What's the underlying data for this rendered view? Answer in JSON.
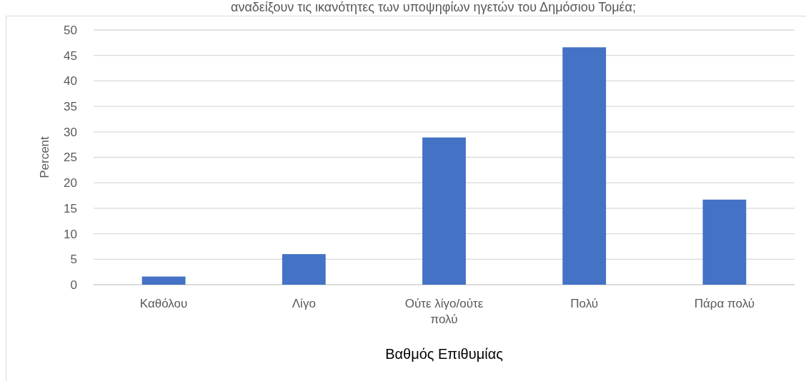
{
  "chart_data": {
    "type": "bar",
    "title": "αναδείξουν τις ικανότητες των υποψηφίων ηγετών του Δημόσιου Τομέα;",
    "xlabel": "Βαθμός Επιθυμίας",
    "ylabel": "Percent",
    "categories": [
      "Καθόλου",
      "Λίγο",
      "Ούτε λίγο/ούτε πολύ",
      "Πολύ",
      "Πάρα πολύ"
    ],
    "values": [
      1.6,
      6.0,
      28.9,
      46.6,
      16.7
    ],
    "color": "#4472c4",
    "ylim": [
      0,
      50
    ],
    "yticks": [
      0,
      5,
      10,
      15,
      20,
      25,
      30,
      35,
      40,
      45,
      50
    ],
    "grid": "y"
  }
}
